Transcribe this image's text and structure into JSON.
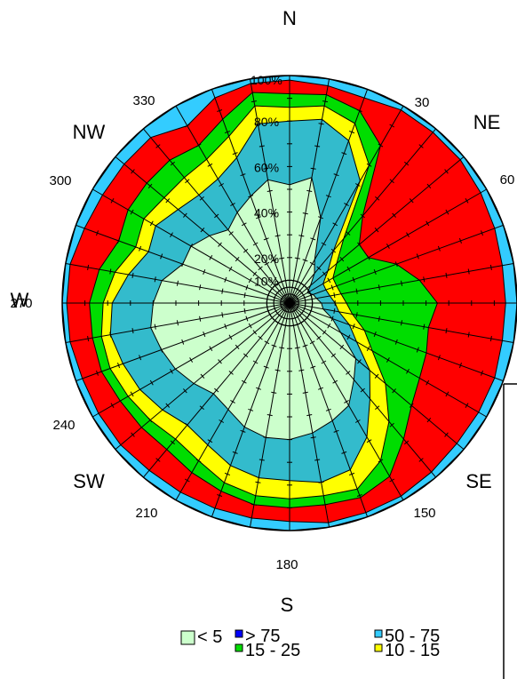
{
  "chart_data": {
    "type": "wind-rose (stacked polar area, cumulative percent)",
    "title": "",
    "compass_labels": [
      "N",
      "NE",
      "SE",
      "S",
      "SW",
      "W",
      "NW"
    ],
    "degree_labels": [
      "30",
      "60",
      "150",
      "180",
      "210",
      "240",
      "270",
      "300",
      "330"
    ],
    "ring_labels": [
      "10%",
      "20%",
      "40%",
      "60%",
      "80%",
      "100%"
    ],
    "radial_range": [
      0,
      100
    ],
    "direction_step_deg": 10,
    "legend": [
      {
        "label": "< 5",
        "color": "#ccffcc"
      },
      {
        "label": "> 75",
        "color": "#0000ff"
      },
      {
        "label": "50 - 75",
        "color": "#33ccff"
      },
      {
        "label": "15 - 25",
        "color": "#00dd00"
      },
      {
        "label": "10 - 15",
        "color": "#ffff00"
      }
    ],
    "directions": [
      0,
      10,
      20,
      30,
      40,
      50,
      60,
      70,
      80,
      90,
      100,
      110,
      120,
      130,
      140,
      150,
      160,
      170,
      180,
      190,
      200,
      210,
      220,
      230,
      240,
      250,
      260,
      270,
      280,
      290,
      300,
      310,
      320,
      330,
      340,
      350
    ],
    "series": [
      {
        "name": "< 5",
        "color": "#ccffcc",
        "values": [
          52,
          56,
          40,
          22,
          17,
          12,
          9,
          11,
          12,
          14,
          15,
          20,
          26,
          38,
          44,
          52,
          55,
          58,
          60,
          60,
          58,
          54,
          52,
          55,
          58,
          60,
          62,
          60,
          57,
          50,
          50,
          46,
          42,
          46,
          50,
          55
        ]
      },
      {
        "name": "",
        "color": "#33bbcc",
        "values": [
          80,
          82,
          76,
          62,
          30,
          22,
          17,
          17,
          18,
          20,
          22,
          28,
          34,
          46,
          55,
          68,
          78,
          80,
          78,
          78,
          76,
          72,
          70,
          73,
          76,
          78,
          80,
          78,
          72,
          66,
          68,
          64,
          62,
          63,
          68,
          80
        ]
      },
      {
        "name": "10 - 15",
        "color": "#ffff00",
        "values": [
          86,
          88,
          84,
          70,
          37,
          27,
          22,
          22,
          23,
          25,
          28,
          35,
          42,
          55,
          68,
          80,
          87,
          86,
          86,
          86,
          84,
          80,
          78,
          80,
          82,
          84,
          84,
          82,
          78,
          72,
          74,
          72,
          72,
          73,
          78,
          88
        ]
      },
      {
        "name": "15 - 25",
        "color": "#00dd00",
        "values": [
          92,
          93,
          90,
          80,
          50,
          40,
          40,
          50,
          58,
          65,
          62,
          64,
          66,
          70,
          78,
          88,
          91,
          90,
          90,
          90,
          88,
          86,
          84,
          85,
          86,
          88,
          88,
          88,
          85,
          80,
          82,
          82,
          82,
          80,
          86,
          94
        ]
      },
      {
        "name": "",
        "color": "#ff0000",
        "values": [
          98,
          97,
          96,
          98,
          98,
          98,
          97,
          96,
          95,
          95,
          95,
          96,
          96,
          96,
          97,
          98,
          98,
          98,
          96,
          96,
          96,
          96,
          96,
          97,
          97,
          97,
          98,
          98,
          98,
          96,
          95,
          95,
          95,
          90,
          96,
          98
        ]
      },
      {
        "name": "50 - 75",
        "color": "#33ccff",
        "values": [
          100,
          100,
          100,
          100,
          100,
          100,
          100,
          100,
          100,
          100,
          100,
          100,
          100,
          100,
          100,
          100,
          100,
          100,
          100,
          100,
          100,
          100,
          100,
          100,
          100,
          100,
          100,
          100,
          100,
          100,
          100,
          100,
          100,
          100,
          100,
          100
        ]
      }
    ]
  }
}
